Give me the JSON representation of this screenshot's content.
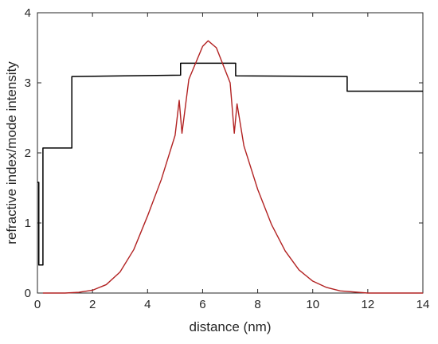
{
  "chart_data": {
    "type": "line",
    "xlabel": "distance (nm)",
    "ylabel": "refractive index/mode intensity",
    "xlim": [
      0,
      14
    ],
    "ylim": [
      0,
      4
    ],
    "x_ticks": [
      0,
      2,
      4,
      6,
      8,
      10,
      12,
      14
    ],
    "y_ticks": [
      0,
      1,
      2,
      3,
      4
    ],
    "x_tick_labels": [
      "0",
      "2",
      "4",
      "6",
      "8",
      "10",
      "12",
      "14"
    ],
    "y_tick_labels": [
      "0",
      "1",
      "2",
      "3",
      "4"
    ],
    "grid": false,
    "legend": "none",
    "series": [
      {
        "color": "#000000",
        "style": "step",
        "x": [
          0,
          0.05,
          0.05,
          0.2,
          0.2,
          1.25,
          1.25,
          5.2,
          5.2,
          7.2,
          7.2,
          11.25,
          11.25,
          14
        ],
        "y": [
          1.58,
          1.58,
          0.4,
          0.4,
          2.07,
          2.07,
          3.09,
          3.11,
          3.28,
          3.28,
          3.1,
          3.09,
          2.88,
          2.88
        ]
      },
      {
        "color": "#b22222",
        "style": "line",
        "x": [
          0.2,
          1,
          1.5,
          2,
          2.5,
          3,
          3.5,
          4,
          4.5,
          5,
          5.15,
          5.25,
          5.5,
          6,
          6.2,
          6.5,
          7,
          7.15,
          7.25,
          7.5,
          8,
          8.5,
          9,
          9.5,
          10,
          10.5,
          11,
          12,
          13,
          14
        ],
        "y": [
          0.0,
          0.0,
          0.01,
          0.04,
          0.12,
          0.3,
          0.62,
          1.1,
          1.62,
          2.25,
          2.75,
          2.28,
          3.05,
          3.52,
          3.6,
          3.5,
          3.0,
          2.28,
          2.7,
          2.1,
          1.48,
          0.98,
          0.6,
          0.33,
          0.17,
          0.08,
          0.03,
          0.0,
          0.0,
          0.0
        ]
      }
    ]
  }
}
